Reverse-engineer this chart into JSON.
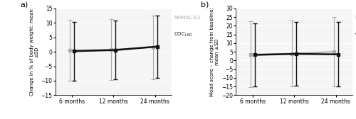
{
  "panel_a": {
    "title": "a)",
    "ylabel_line1": "Change in % of body weight: mean",
    "ylabel_line2": "±SD",
    "xlabel_ticks": [
      "6 months",
      "12 months",
      "24 months"
    ],
    "x": [
      0,
      1,
      2
    ],
    "nomac_e2_mean": [
      0.5,
      0.8,
      1.5
    ],
    "nomac_e2_err_low": [
      10.5,
      10.5,
      11.0
    ],
    "nomac_e2_err_high": [
      10.5,
      10.5,
      11.0
    ],
    "coc_lng_mean": [
      0.2,
      0.6,
      1.8
    ],
    "coc_lng_err_low": [
      10.2,
      10.2,
      10.8
    ],
    "coc_lng_err_high": [
      10.2,
      10.2,
      10.8
    ],
    "ylim": [
      -15,
      15
    ],
    "yticks": [
      -15,
      -10,
      -5,
      0,
      5,
      10,
      15
    ],
    "nomac_color": "#aaaaaa",
    "coc_color": "#111111"
  },
  "panel_b": {
    "title": "b)",
    "ylabel_line1": "Mood score – change from baseline:",
    "ylabel_line2": "mean ±SD",
    "xlabel_ticks": [
      "6 months",
      "12 months",
      "24 months"
    ],
    "x": [
      0,
      1,
      2
    ],
    "nomac_e2_mean": [
      3.5,
      4.0,
      5.0
    ],
    "nomac_e2_err_low": [
      19.0,
      19.0,
      20.0
    ],
    "nomac_e2_err_high": [
      19.0,
      19.0,
      20.0
    ],
    "coc_lng_mean": [
      3.2,
      3.8,
      3.5
    ],
    "coc_lng_err_low": [
      18.0,
      18.5,
      18.5
    ],
    "coc_lng_err_high": [
      18.0,
      18.5,
      18.5
    ],
    "ylim": [
      -20,
      30
    ],
    "yticks": [
      -20,
      -15,
      -10,
      -5,
      0,
      5,
      10,
      15,
      20,
      25,
      30
    ],
    "nomac_color": "#aaaaaa",
    "coc_color": "#111111"
  },
  "legend_labels": [
    "NOMAC-E2",
    "COC"
  ],
  "legend_lng_sub": "LNG",
  "bg_color": "#f5f5f5"
}
